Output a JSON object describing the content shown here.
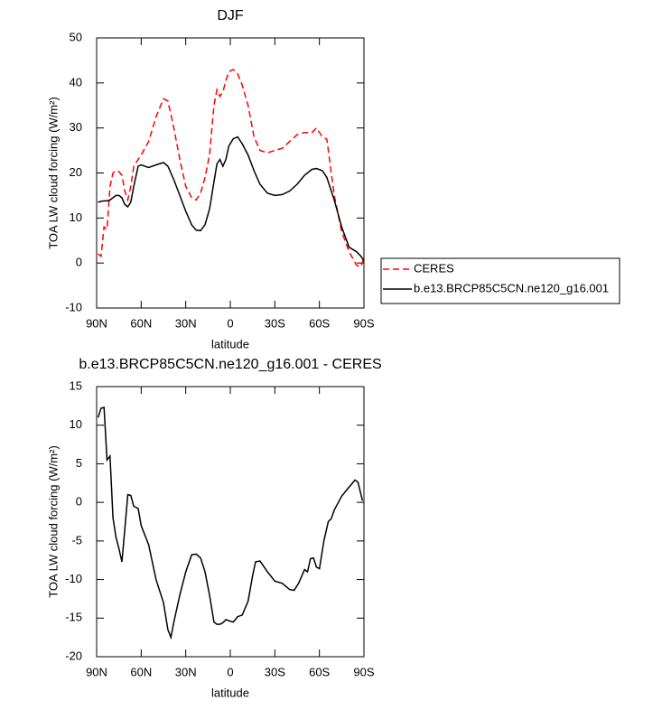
{
  "chart_data": [
    {
      "type": "line",
      "title": "DJF",
      "xlabel": "latitude",
      "ylabel": "TOA LW cloud forcing (W/m²)",
      "xlim": [
        90,
        -90
      ],
      "ylim": [
        -10,
        50
      ],
      "yticks": [
        -10,
        0,
        10,
        20,
        30,
        40,
        50
      ],
      "xticks": [
        {
          "value": 90,
          "label": "90N"
        },
        {
          "value": 60,
          "label": "60N"
        },
        {
          "value": 30,
          "label": "30N"
        },
        {
          "value": 0,
          "label": "0"
        },
        {
          "value": -30,
          "label": "30S"
        },
        {
          "value": -60,
          "label": "60S"
        },
        {
          "value": -90,
          "label": "90S"
        }
      ],
      "legend": "outside-right",
      "x": [
        89,
        87,
        85,
        83,
        81,
        79,
        77,
        75,
        73,
        71,
        69,
        67,
        65,
        62,
        60,
        55,
        50,
        45,
        42,
        38,
        34,
        30,
        26,
        23,
        20,
        17,
        14,
        11,
        9,
        7,
        5,
        3,
        1,
        -2,
        -5,
        -8,
        -12,
        -16,
        -20,
        -25,
        -30,
        -35,
        -40,
        -45,
        -50,
        -55,
        -58,
        -62,
        -65,
        -70,
        -75,
        -80,
        -85,
        -88,
        -90
      ],
      "series": [
        {
          "name": "CERES",
          "color": "#ff0000",
          "dash": true,
          "values": [
            2,
            1.5,
            8,
            7.5,
            17,
            20,
            20.5,
            20.3,
            19.5,
            16,
            14,
            17,
            21.5,
            23,
            24,
            27,
            32.5,
            36.5,
            36,
            30,
            23,
            17,
            14.5,
            14,
            15.5,
            19,
            24,
            35,
            38.5,
            37,
            38,
            40.5,
            42.5,
            43,
            42,
            39.5,
            35,
            28,
            25,
            24.5,
            25,
            25.5,
            27,
            28.5,
            29,
            29,
            30,
            28,
            27.5,
            15,
            7,
            2.5,
            -0.5,
            -0.8,
            1.2
          ]
        },
        {
          "name": "b.e13.BRCP85C5CN.ne120_g16.001",
          "color": "#000000",
          "dash": false,
          "values": [
            13.5,
            13.7,
            13.8,
            13.8,
            14,
            14.5,
            15,
            15,
            14.5,
            13,
            12.5,
            13.5,
            17,
            21.5,
            21.8,
            21.2,
            21.8,
            22.3,
            21.5,
            18.5,
            15,
            11.5,
            8.5,
            7.3,
            7.2,
            8.5,
            12,
            18,
            22,
            23,
            21.5,
            23,
            26,
            27.6,
            28,
            26.5,
            24,
            20.5,
            17.5,
            15.5,
            15,
            15.2,
            16,
            17.5,
            19.5,
            20.8,
            21,
            20.5,
            19,
            14,
            8,
            3.5,
            2.5,
            1.5,
            0.5
          ]
        }
      ]
    },
    {
      "type": "line",
      "title": "b.e13.BRCP85C5CN.ne120_g16.001 - CERES",
      "xlabel": "latitude",
      "ylabel": "TOA LW cloud forcing (W/m²)",
      "xlim": [
        90,
        -90
      ],
      "ylim": [
        -20,
        15
      ],
      "yticks": [
        -20,
        -15,
        -10,
        -5,
        0,
        5,
        10,
        15
      ],
      "xticks": [
        {
          "value": 90,
          "label": "90N"
        },
        {
          "value": 60,
          "label": "60N"
        },
        {
          "value": 30,
          "label": "30N"
        },
        {
          "value": 0,
          "label": "0"
        },
        {
          "value": -30,
          "label": "30S"
        },
        {
          "value": -60,
          "label": "60S"
        },
        {
          "value": -90,
          "label": "90S"
        }
      ],
      "x": [
        89,
        87,
        85,
        83,
        81,
        79,
        77,
        75,
        73,
        71,
        69,
        67,
        65,
        62,
        60,
        55,
        50,
        45,
        42,
        40,
        38,
        34,
        30,
        26,
        23,
        20,
        17,
        14,
        11,
        9,
        7,
        5,
        3,
        0,
        -2,
        -5,
        -8,
        -12,
        -15,
        -17,
        -20,
        -25,
        -30,
        -35,
        -40,
        -43,
        -46,
        -50,
        -52,
        -54,
        -56,
        -58,
        -60,
        -63,
        -66,
        -68,
        -70,
        -75,
        -80,
        -84,
        -86,
        -89
      ],
      "color": "#000000",
      "values": [
        11,
        12.2,
        12.3,
        5.5,
        6,
        -2,
        -4.5,
        -6,
        -7.7,
        -3.5,
        1,
        0.9,
        -0.5,
        -0.8,
        -3,
        -5.5,
        -10,
        -13,
        -16.5,
        -17.5,
        -15.5,
        -12,
        -9,
        -6.8,
        -6.7,
        -7.2,
        -9,
        -12,
        -15.5,
        -15.8,
        -15.8,
        -15.6,
        -15.2,
        -15.4,
        -15.5,
        -14.8,
        -14.6,
        -12.8,
        -9.5,
        -7.7,
        -7.6,
        -9,
        -10.2,
        -10.5,
        -11.3,
        -11.4,
        -10.5,
        -8.7,
        -9,
        -7.3,
        -7.2,
        -8.4,
        -8.6,
        -5,
        -2.5,
        -2.1,
        -1,
        0.8,
        2,
        2.9,
        2.6,
        0.2
      ]
    }
  ]
}
